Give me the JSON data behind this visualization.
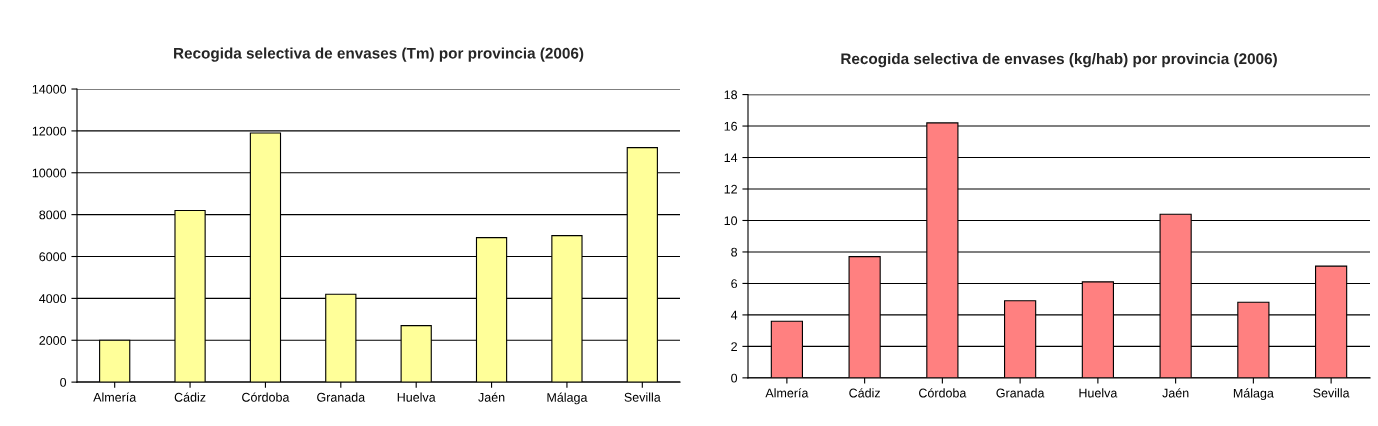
{
  "chart_data": [
    {
      "type": "bar",
      "title": "Recogida selectiva de envases (Tm) por provincia (2006)",
      "categories": [
        "Almería",
        "Cádiz",
        "Córdoba",
        "Granada",
        "Huelva",
        "Jaén",
        "Málaga",
        "Sevilla"
      ],
      "values": [
        2000,
        8200,
        11900,
        4200,
        2700,
        6900,
        7000,
        11200
      ],
      "color": "#ffff99",
      "ylim": [
        0,
        14000
      ],
      "yticks": [
        0,
        2000,
        4000,
        6000,
        8000,
        10000,
        12000,
        14000
      ],
      "grid": "y"
    },
    {
      "type": "bar",
      "title": "Recogida selectiva de envases (kg/hab) por provincia (2006)",
      "categories": [
        "Almería",
        "Cádiz",
        "Córdoba",
        "Granada",
        "Huelva",
        "Jaén",
        "Málaga",
        "Sevilla"
      ],
      "values": [
        3.6,
        7.7,
        16.2,
        4.9,
        6.1,
        10.4,
        4.8,
        7.1
      ],
      "color": "#ff8080",
      "ylim": [
        0,
        18
      ],
      "yticks": [
        0,
        2,
        4,
        6,
        8,
        10,
        12,
        14,
        16,
        18
      ],
      "grid": "y"
    }
  ]
}
